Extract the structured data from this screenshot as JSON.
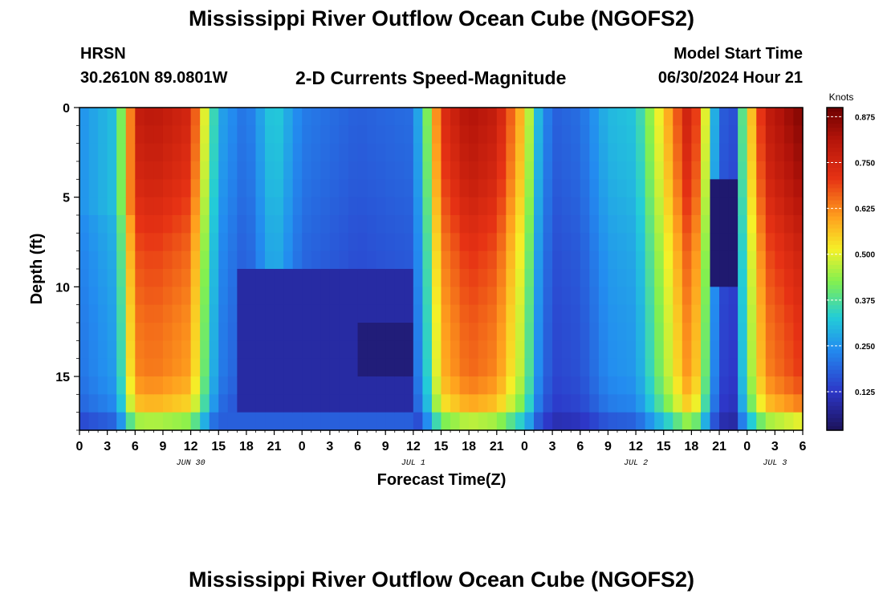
{
  "header": {
    "title": "Mississippi River Outflow Ocean Cube (NGOFS2)",
    "station": "HRSN",
    "coordinates": "30.2610N  89.0801W",
    "subtitle": "2-D Currents Speed-Magnitude",
    "model_start_label": "Model Start Time",
    "model_start_value": "06/30/2024 Hour 21"
  },
  "footer": {
    "title": "Mississippi River Outflow Ocean Cube (NGOFS2)"
  },
  "chart_data": {
    "type": "heatmap",
    "title": "2-D Currents Speed-Magnitude",
    "xlabel": "Forecast Time(Z)",
    "ylabel": "Depth (ft)",
    "x_range_hours": [
      0,
      78
    ],
    "x_tick_labels": [
      "0",
      "3",
      "6",
      "9",
      "12",
      "15",
      "18",
      "21",
      "0",
      "3",
      "6",
      "9",
      "12",
      "15",
      "18",
      "21",
      "0",
      "3",
      "6",
      "9",
      "12",
      "15",
      "18",
      "21",
      "0",
      "3",
      "6"
    ],
    "date_labels": [
      {
        "hour": 12,
        "label": "JUN 30"
      },
      {
        "hour": 36,
        "label": "JUL 1"
      },
      {
        "hour": 60,
        "label": "JUL 2"
      },
      {
        "hour": 75,
        "label": "JUL 3"
      }
    ],
    "ylim": [
      0,
      18
    ],
    "y_ticks": [
      0,
      5,
      10,
      15
    ],
    "colorbar": {
      "unit": "Knots",
      "range": [
        0.02,
        0.9
      ],
      "ticks": [
        "0.125",
        "0.250",
        "0.375",
        "0.500",
        "0.625",
        "0.750",
        "0.875"
      ],
      "tick_values": [
        0.125,
        0.25,
        0.375,
        0.5,
        0.625,
        0.75,
        0.875
      ]
    },
    "depth_levels_ft": [
      0.5,
      1.5,
      2.5,
      3.5,
      4.5,
      5.5,
      6.5,
      7.5,
      8.5,
      9.5,
      10.5,
      11.5,
      12.5,
      13.5,
      14.5,
      15.5,
      16.5,
      17.5
    ],
    "depth_factor_rows": [
      {
        "depth": 0,
        "factor": 1.0
      },
      {
        "depth": 4,
        "factor": 0.95
      },
      {
        "depth": 8,
        "factor": 0.87
      },
      {
        "depth": 12,
        "factor": 0.82
      },
      {
        "depth": 15,
        "factor": 0.8
      },
      {
        "depth": 17,
        "factor": 0.7
      },
      {
        "depth": 18,
        "factor": 0.45
      }
    ],
    "surface_speed_knots_by_hour": [
      {
        "hour": 0,
        "speed": 0.26
      },
      {
        "hour": 4,
        "speed": 0.33
      },
      {
        "hour": 5,
        "speed": 0.55
      },
      {
        "hour": 6,
        "speed": 0.78
      },
      {
        "hour": 8,
        "speed": 0.8
      },
      {
        "hour": 12,
        "speed": 0.75
      },
      {
        "hour": 13.5,
        "speed": 0.5
      },
      {
        "hour": 15,
        "speed": 0.28
      },
      {
        "hour": 18,
        "speed": 0.2
      },
      {
        "hour": 21,
        "speed": 0.34
      },
      {
        "hour": 24,
        "speed": 0.22
      },
      {
        "hour": 30,
        "speed": 0.18
      },
      {
        "hour": 36,
        "speed": 0.2
      },
      {
        "hour": 37.5,
        "speed": 0.42
      },
      {
        "hour": 39,
        "speed": 0.72
      },
      {
        "hour": 42,
        "speed": 0.82
      },
      {
        "hour": 45,
        "speed": 0.78
      },
      {
        "hour": 48,
        "speed": 0.55
      },
      {
        "hour": 49.5,
        "speed": 0.3
      },
      {
        "hour": 51,
        "speed": 0.18
      },
      {
        "hour": 54,
        "speed": 0.2
      },
      {
        "hour": 57,
        "speed": 0.3
      },
      {
        "hour": 60,
        "speed": 0.32
      },
      {
        "hour": 63,
        "speed": 0.55
      },
      {
        "hour": 66,
        "speed": 0.8
      },
      {
        "hour": 67.5,
        "speed": 0.5
      },
      {
        "hour": 69,
        "speed": 0.18
      },
      {
        "hour": 70.5,
        "speed": 0.16
      },
      {
        "hour": 72,
        "speed": 0.5
      },
      {
        "hour": 74,
        "speed": 0.78
      },
      {
        "hour": 78,
        "speed": 0.88
      }
    ],
    "slow_patches": [
      {
        "hour_start": 17,
        "hour_end": 36,
        "depth_start": 9.5,
        "depth_end": 16.5,
        "speed": 0.09
      },
      {
        "hour_start": 30,
        "hour_end": 36,
        "depth_start": 12,
        "depth_end": 15,
        "speed": 0.05
      },
      {
        "hour_start": 68.5,
        "hour_end": 70.5,
        "depth_start": 4.5,
        "depth_end": 9.5,
        "speed": 0.04
      }
    ],
    "bottom_row": {
      "depth_from": 17.5,
      "speed": 0.18,
      "hour_start": 15,
      "hour_end": 36
    }
  }
}
